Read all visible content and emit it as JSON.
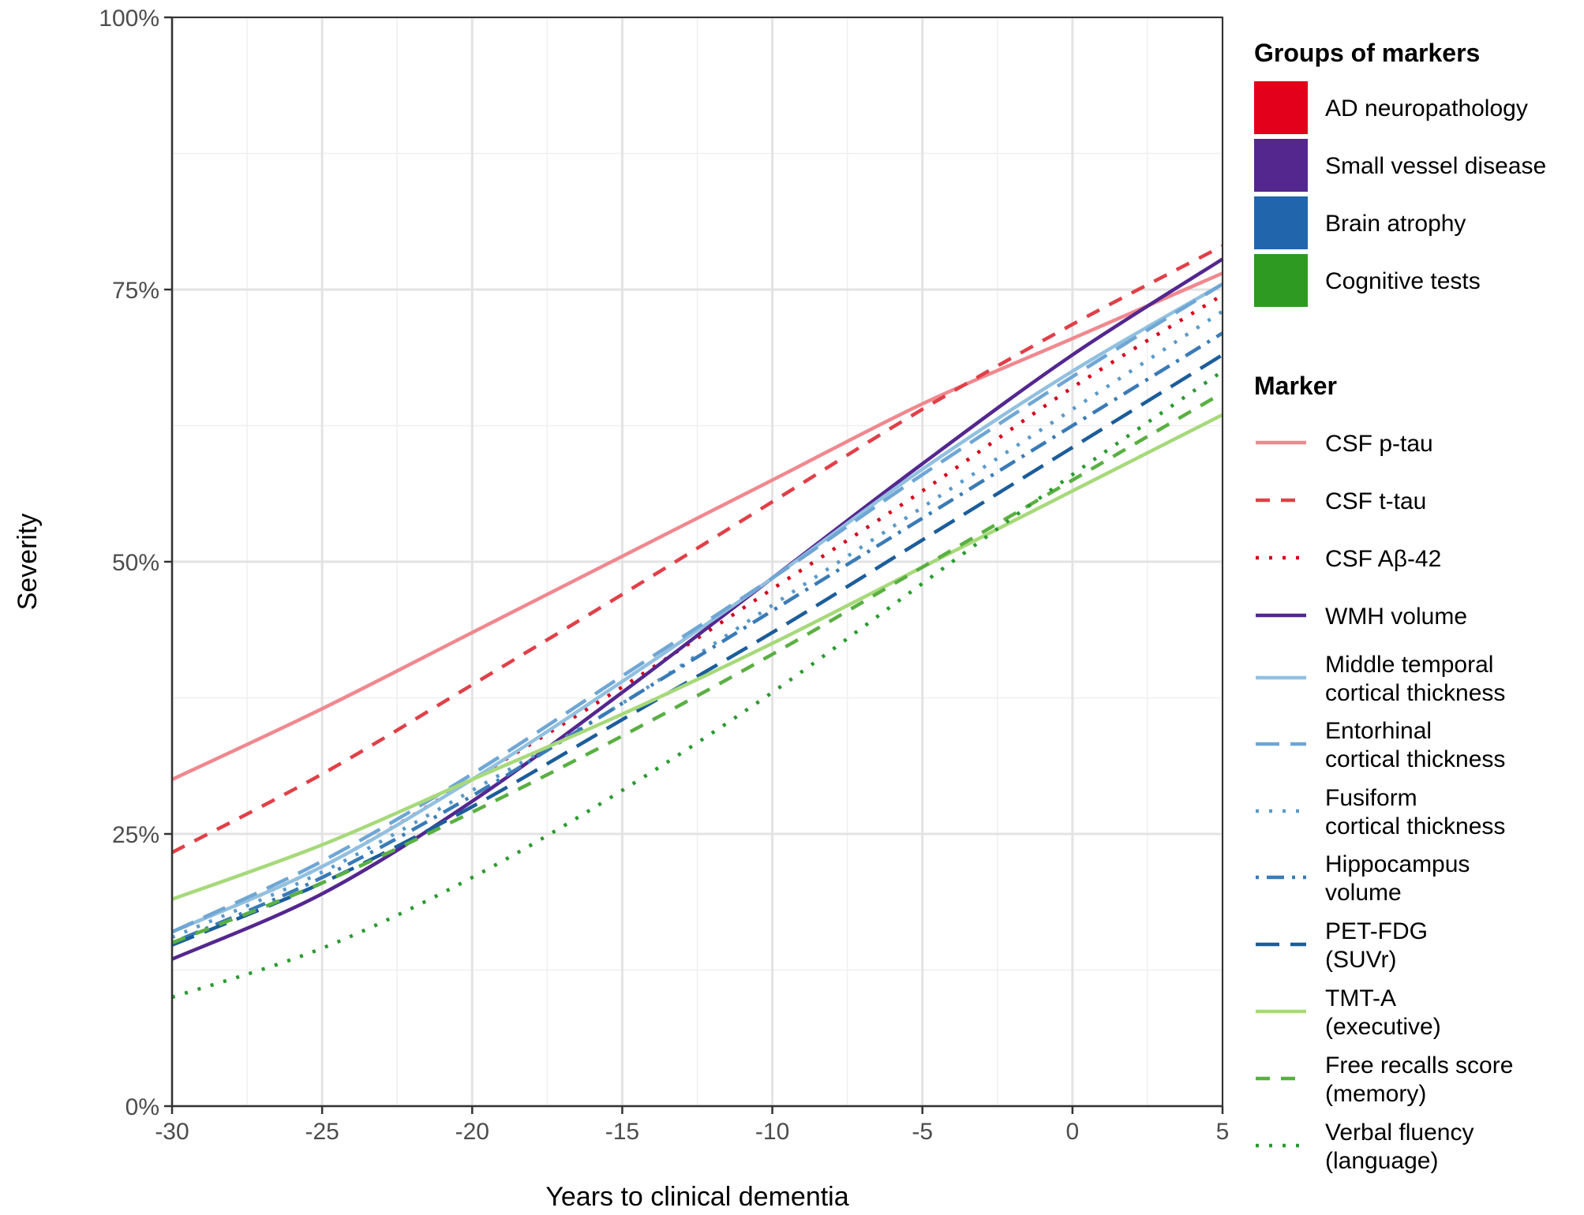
{
  "chart_data": {
    "type": "line",
    "xlabel": "Years to clinical dementia",
    "ylabel": "Severity",
    "xlim": [
      -30,
      5
    ],
    "ylim": [
      0,
      100
    ],
    "x_ticks": [
      "-30",
      "-25",
      "-20",
      "-15",
      "-10",
      "-5",
      "0",
      "5"
    ],
    "y_ticks": [
      "0%",
      "25%",
      "50%",
      "75%",
      "100%"
    ],
    "grid": true,
    "legend_position": "right",
    "groups_legend": {
      "title": "Groups of markers",
      "items": [
        {
          "label": "AD neuropathology",
          "color": "#e3001b"
        },
        {
          "label": "Small vessel disease",
          "color": "#54278f"
        },
        {
          "label": "Brain atrophy",
          "color": "#2166ac"
        },
        {
          "label": "Cognitive tests",
          "color": "#2e9a22"
        }
      ]
    },
    "marker_legend_title": "Marker",
    "x": [
      -30,
      -25,
      -20,
      -15,
      -10,
      -5,
      0,
      5
    ],
    "series": [
      {
        "name": "CSF p-tau",
        "lines": [
          "CSF p-tau"
        ],
        "color": "#f0888f",
        "dash": "solid",
        "values": [
          30.0,
          36.5,
          43.5,
          50.5,
          57.5,
          64.5,
          70.5,
          76.5
        ]
      },
      {
        "name": "CSF t-tau",
        "lines": [
          "CSF t-tau"
        ],
        "color": "#e04048",
        "dash": "dashed",
        "values": [
          23.3,
          30.5,
          38.7,
          47.0,
          55.5,
          64.0,
          71.8,
          79.0
        ]
      },
      {
        "name": "CSF Aβ-42",
        "lines": [
          "CSF Aβ-42"
        ],
        "color": "#d4001c",
        "dash": "dotted",
        "values": [
          16.0,
          22.0,
          30.0,
          38.5,
          47.5,
          56.5,
          66.0,
          74.5
        ]
      },
      {
        "name": "WMH volume",
        "lines": [
          "WMH volume"
        ],
        "color": "#54278f",
        "dash": "solid",
        "values": [
          13.5,
          19.5,
          28.0,
          38.0,
          48.5,
          59.0,
          69.0,
          77.8
        ]
      },
      {
        "name": "Middle temporal cortical thickness",
        "lines": [
          "Middle temporal",
          "cortical thickness"
        ],
        "color": "#92c0df",
        "dash": "solid",
        "values": [
          16.0,
          22.0,
          30.0,
          39.0,
          48.5,
          58.5,
          67.5,
          75.5
        ]
      },
      {
        "name": "Entorhinal cortical thickness",
        "lines": [
          "Entorhinal",
          "cortical thickness"
        ],
        "color": "#6fa6d4",
        "dash": "longdash",
        "values": [
          16.0,
          22.5,
          30.5,
          39.5,
          48.5,
          58.0,
          67.0,
          75.5
        ]
      },
      {
        "name": "Fusiform cortical thickness",
        "lines": [
          "Fusiform",
          "cortical thickness"
        ],
        "color": "#5b9ac8",
        "dash": "dotted",
        "values": [
          15.5,
          21.5,
          29.0,
          37.0,
          46.0,
          55.0,
          64.0,
          73.0
        ]
      },
      {
        "name": "Hippocampus volume",
        "lines": [
          "Hippocampus",
          "volume"
        ],
        "color": "#3a7bb6",
        "dash": "dotdash",
        "values": [
          15.0,
          21.0,
          28.5,
          37.0,
          45.5,
          54.0,
          62.5,
          71.0
        ]
      },
      {
        "name": "PET-FDG (SUVr)",
        "lines": [
          "PET-FDG",
          "(SUVr)"
        ],
        "color": "#1c5d9a",
        "dash": "longdash",
        "values": [
          14.8,
          20.5,
          27.5,
          35.5,
          43.5,
          52.0,
          60.5,
          69.0
        ]
      },
      {
        "name": "TMT-A (executive)",
        "lines": [
          "TMT-A",
          "(executive)"
        ],
        "color": "#a7d97a",
        "dash": "solid",
        "values": [
          19.0,
          24.0,
          30.0,
          36.0,
          42.5,
          49.5,
          56.5,
          63.5
        ]
      },
      {
        "name": "Free recalls score (memory)",
        "lines": [
          "Free recalls score",
          "(memory)"
        ],
        "color": "#5ab043",
        "dash": "dashed",
        "values": [
          15.0,
          20.5,
          27.0,
          34.0,
          41.5,
          49.5,
          57.5,
          65.5
        ]
      },
      {
        "name": "Verbal fluency (language)",
        "lines": [
          "Verbal fluency",
          "(language)"
        ],
        "color": "#2a9a30",
        "dash": "dotted",
        "values": [
          10.0,
          14.5,
          21.0,
          29.0,
          38.0,
          48.0,
          58.0,
          67.5
        ]
      }
    ]
  }
}
